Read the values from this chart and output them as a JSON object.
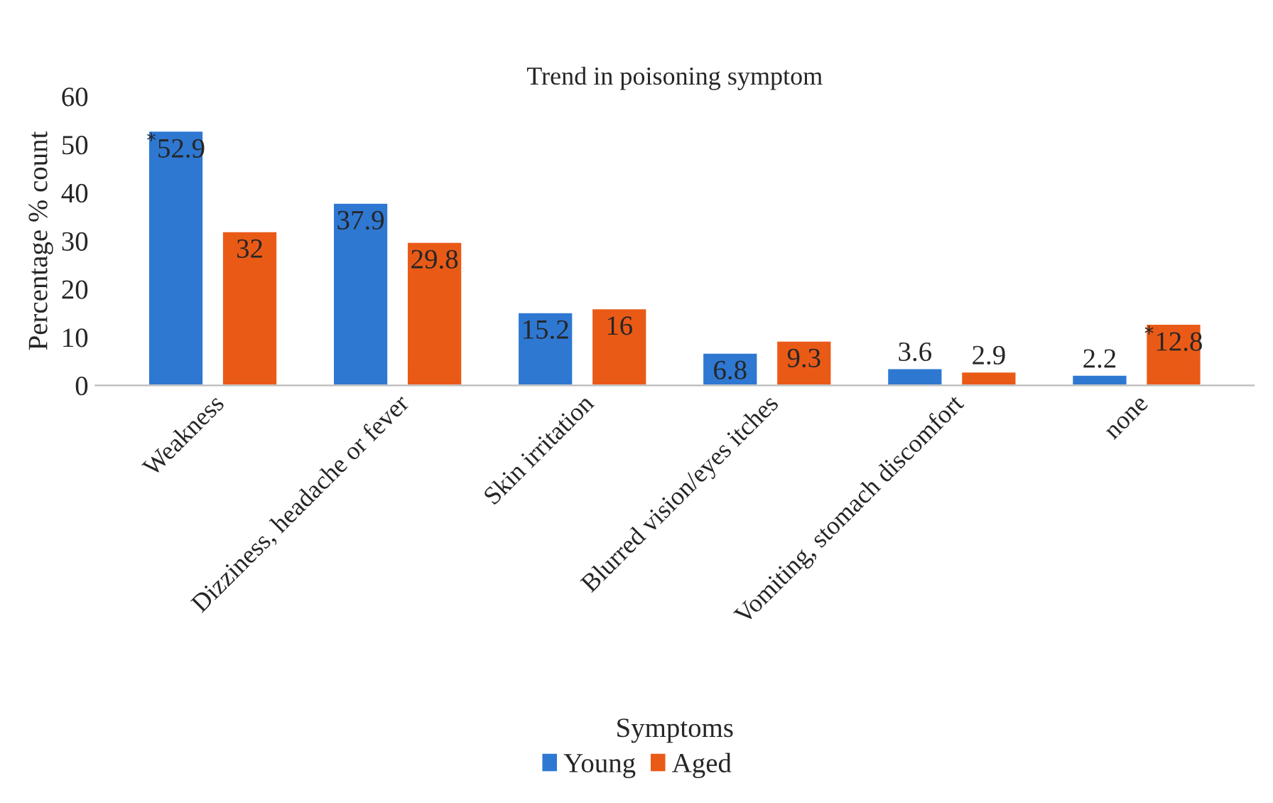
{
  "chart_data": {
    "type": "bar",
    "title": "Trend in poisoning symptom",
    "xlabel": "Symptoms",
    "ylabel": "Percentage % count",
    "categories": [
      "Weakness",
      "Dizziness, headache or fever",
      "Skin irritation",
      "Blurred vision/eyes itches",
      "Vomiting, stomach discomfort",
      "none"
    ],
    "series": [
      {
        "name": "Young",
        "color": "#2e78d2",
        "values": [
          52.9,
          37.9,
          15.2,
          6.8,
          3.6,
          2.2
        ],
        "value_labels": [
          "$^{*}$52.9",
          "37.9",
          "15.2",
          "6.8",
          "3.6",
          "2.2"
        ]
      },
      {
        "name": "Aged",
        "color": "#ea5a17",
        "values": [
          32,
          29.8,
          16,
          9.3,
          2.9,
          12.8
        ],
        "value_labels": [
          "32",
          "29.8",
          "16",
          "9.3",
          "2.9",
          "$^{*}$12.8"
        ]
      }
    ],
    "ylim": [
      0,
      60
    ],
    "yticks": [
      0,
      10,
      20,
      30,
      40,
      50,
      60
    ],
    "grid": false,
    "legend": "bottom"
  }
}
